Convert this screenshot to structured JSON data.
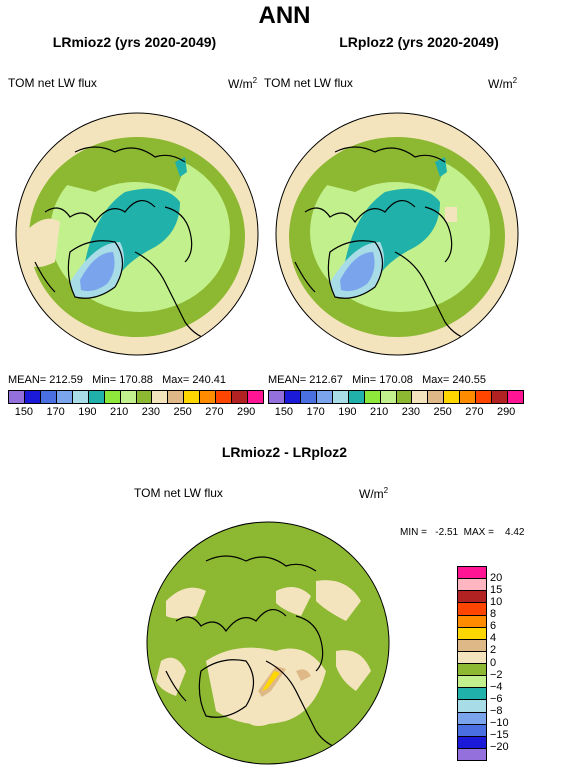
{
  "page_title": "ANN",
  "panels": [
    {
      "title": "LRmioz2 (yrs 2020-2049)",
      "var_label": "TOM net LW flux",
      "unit": "W/m",
      "unit_sup": "2",
      "stats": "MEAN= 212.59   Min= 170.88   Max= 240.41"
    },
    {
      "title": "LRploz2 (yrs 2020-2049)",
      "var_label": "TOM net LW flux",
      "unit": "W/m",
      "unit_sup": "2",
      "stats": "MEAN= 212.67   Min= 170.08   Max= 240.55"
    }
  ],
  "diff_panel": {
    "title": "LRmioz2 - LRploz2",
    "var_label": "TOM net LW flux",
    "unit": "W/m",
    "unit_sup": "2",
    "stats": "MIN =   -2.51  MAX =    4.42"
  },
  "abs_colorbar": {
    "colors": [
      "#9370db",
      "#1a1ad8",
      "#4a6fe0",
      "#7aa4ec",
      "#a8dce6",
      "#20b2aa",
      "#8ee83c",
      "#c2f08c",
      "#8cb832",
      "#f4e4be",
      "#deb887",
      "#ffd700",
      "#ff8c00",
      "#ff4500",
      "#b22222",
      "#ff1493"
    ],
    "labels": [
      "150",
      "170",
      "190",
      "210",
      "230",
      "250",
      "270",
      "290"
    ]
  },
  "diff_colorbar": {
    "colors": [
      "#ff1493",
      "#ffb6c1",
      "#b22222",
      "#ff4500",
      "#ff8c00",
      "#ffd700",
      "#deb887",
      "#f4e4be",
      "#8cb832",
      "#c2f08c",
      "#20b2aa",
      "#a8dce6",
      "#7aa4ec",
      "#4a6fe0",
      "#1a1ad8",
      "#9370db"
    ],
    "labels": [
      "20",
      "15",
      "10",
      "8",
      "6",
      "4",
      "2",
      "0",
      "−2",
      "−4",
      "−6",
      "−8",
      "−10",
      "−15",
      "−20"
    ]
  }
}
